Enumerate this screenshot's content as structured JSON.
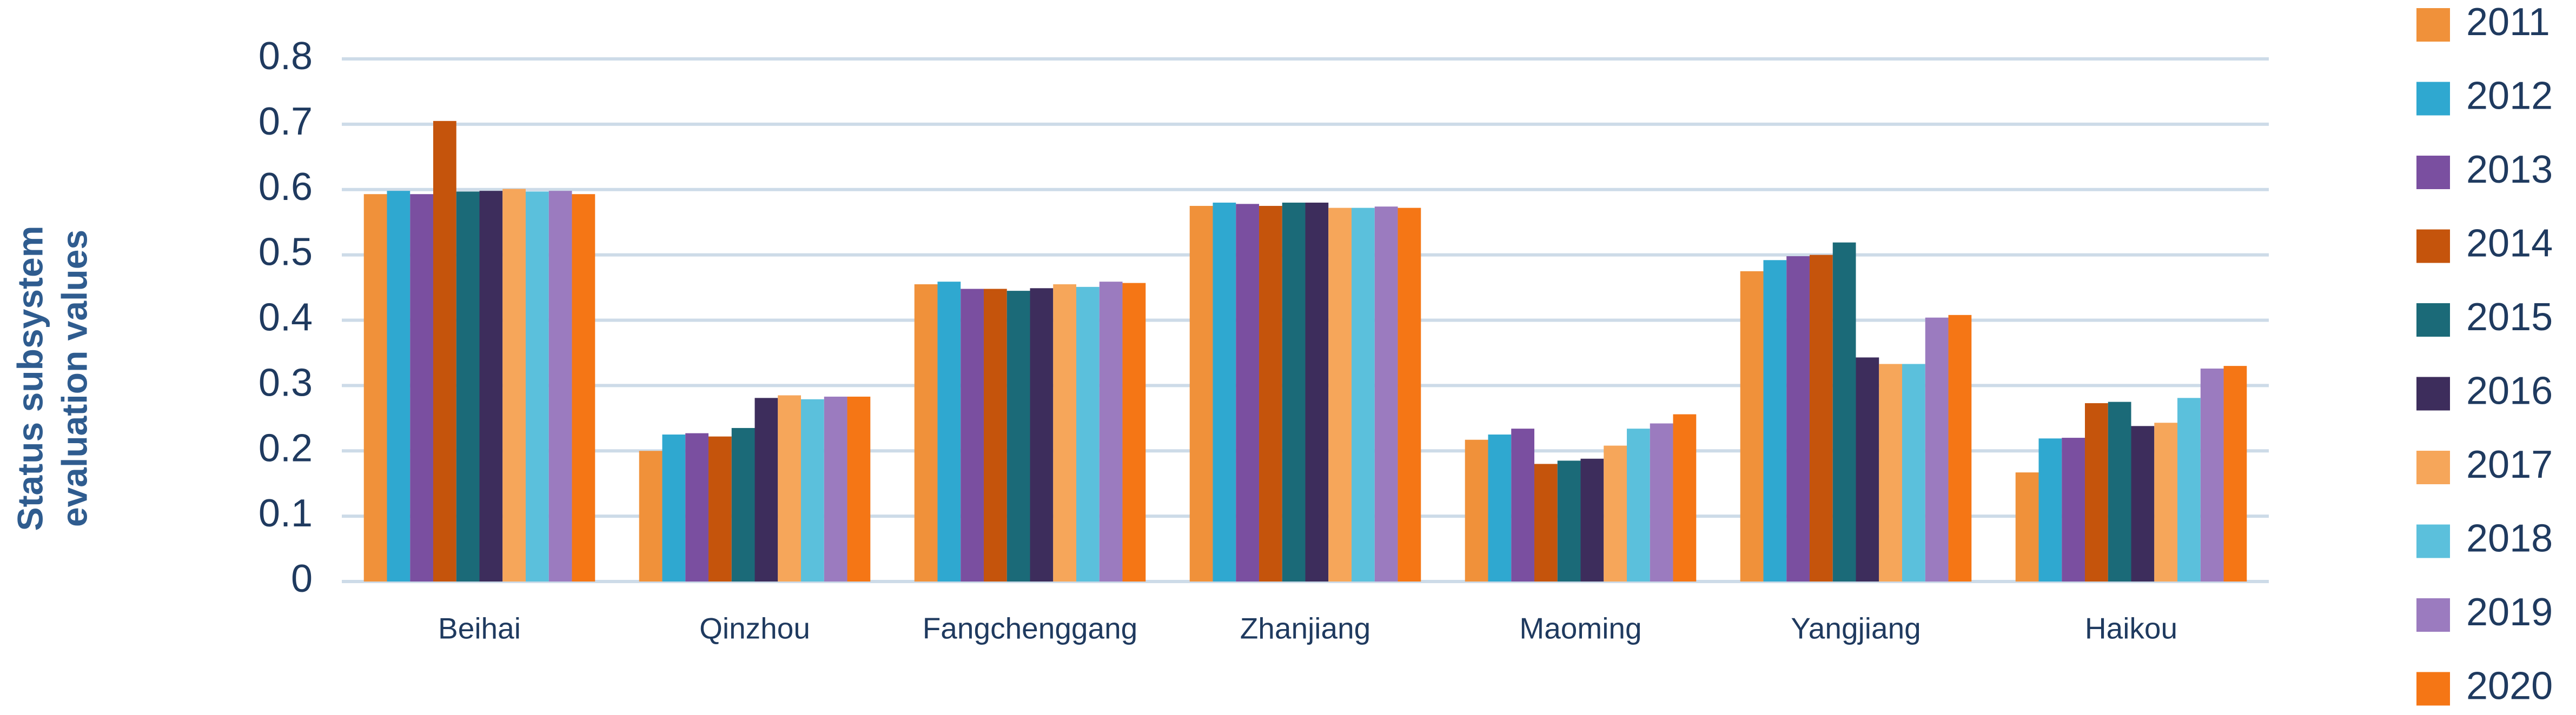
{
  "chart_data": {
    "type": "bar",
    "ylabel": [
      "Status subsystem",
      "evaluation values"
    ],
    "categories": [
      "Beihai",
      "Qinzhou",
      "Fangchenggang",
      "Zhanjiang",
      "Maoming",
      "Yangjiang",
      "Haikou"
    ],
    "series": [
      {
        "name": "2011",
        "color": "#f0913a",
        "values": [
          0.593,
          0.2,
          0.455,
          0.575,
          0.217,
          0.475,
          0.167
        ]
      },
      {
        "name": "2012",
        "color": "#2fa8d0",
        "values": [
          0.598,
          0.225,
          0.459,
          0.58,
          0.225,
          0.492,
          0.219
        ]
      },
      {
        "name": "2013",
        "color": "#7a4fa0",
        "values": [
          0.593,
          0.227,
          0.448,
          0.578,
          0.234,
          0.498,
          0.22
        ]
      },
      {
        "name": "2014",
        "color": "#c5540c",
        "values": [
          0.705,
          0.222,
          0.448,
          0.575,
          0.18,
          0.5,
          0.273
        ]
      },
      {
        "name": "2015",
        "color": "#1b6a78",
        "values": [
          0.597,
          0.235,
          0.445,
          0.58,
          0.185,
          0.519,
          0.275
        ]
      },
      {
        "name": "2016",
        "color": "#3d2d5c",
        "values": [
          0.598,
          0.281,
          0.449,
          0.58,
          0.188,
          0.343,
          0.238
        ]
      },
      {
        "name": "2017",
        "color": "#f6a65a",
        "values": [
          0.601,
          0.285,
          0.455,
          0.572,
          0.208,
          0.333,
          0.243
        ]
      },
      {
        "name": "2018",
        "color": "#5bc0dc",
        "values": [
          0.597,
          0.279,
          0.451,
          0.572,
          0.234,
          0.333,
          0.281
        ]
      },
      {
        "name": "2019",
        "color": "#9b7bbf",
        "values": [
          0.598,
          0.283,
          0.459,
          0.574,
          0.242,
          0.404,
          0.326
        ]
      },
      {
        "name": "2020",
        "color": "#f57615",
        "values": [
          0.593,
          0.283,
          0.457,
          0.572,
          0.256,
          0.408,
          0.33
        ]
      }
    ],
    "ylim": [
      0,
      0.8
    ],
    "yticks": [
      0,
      0.1,
      0.2,
      0.3,
      0.4,
      0.5,
      0.6,
      0.7,
      0.8
    ],
    "grid": true,
    "legend": "right"
  }
}
